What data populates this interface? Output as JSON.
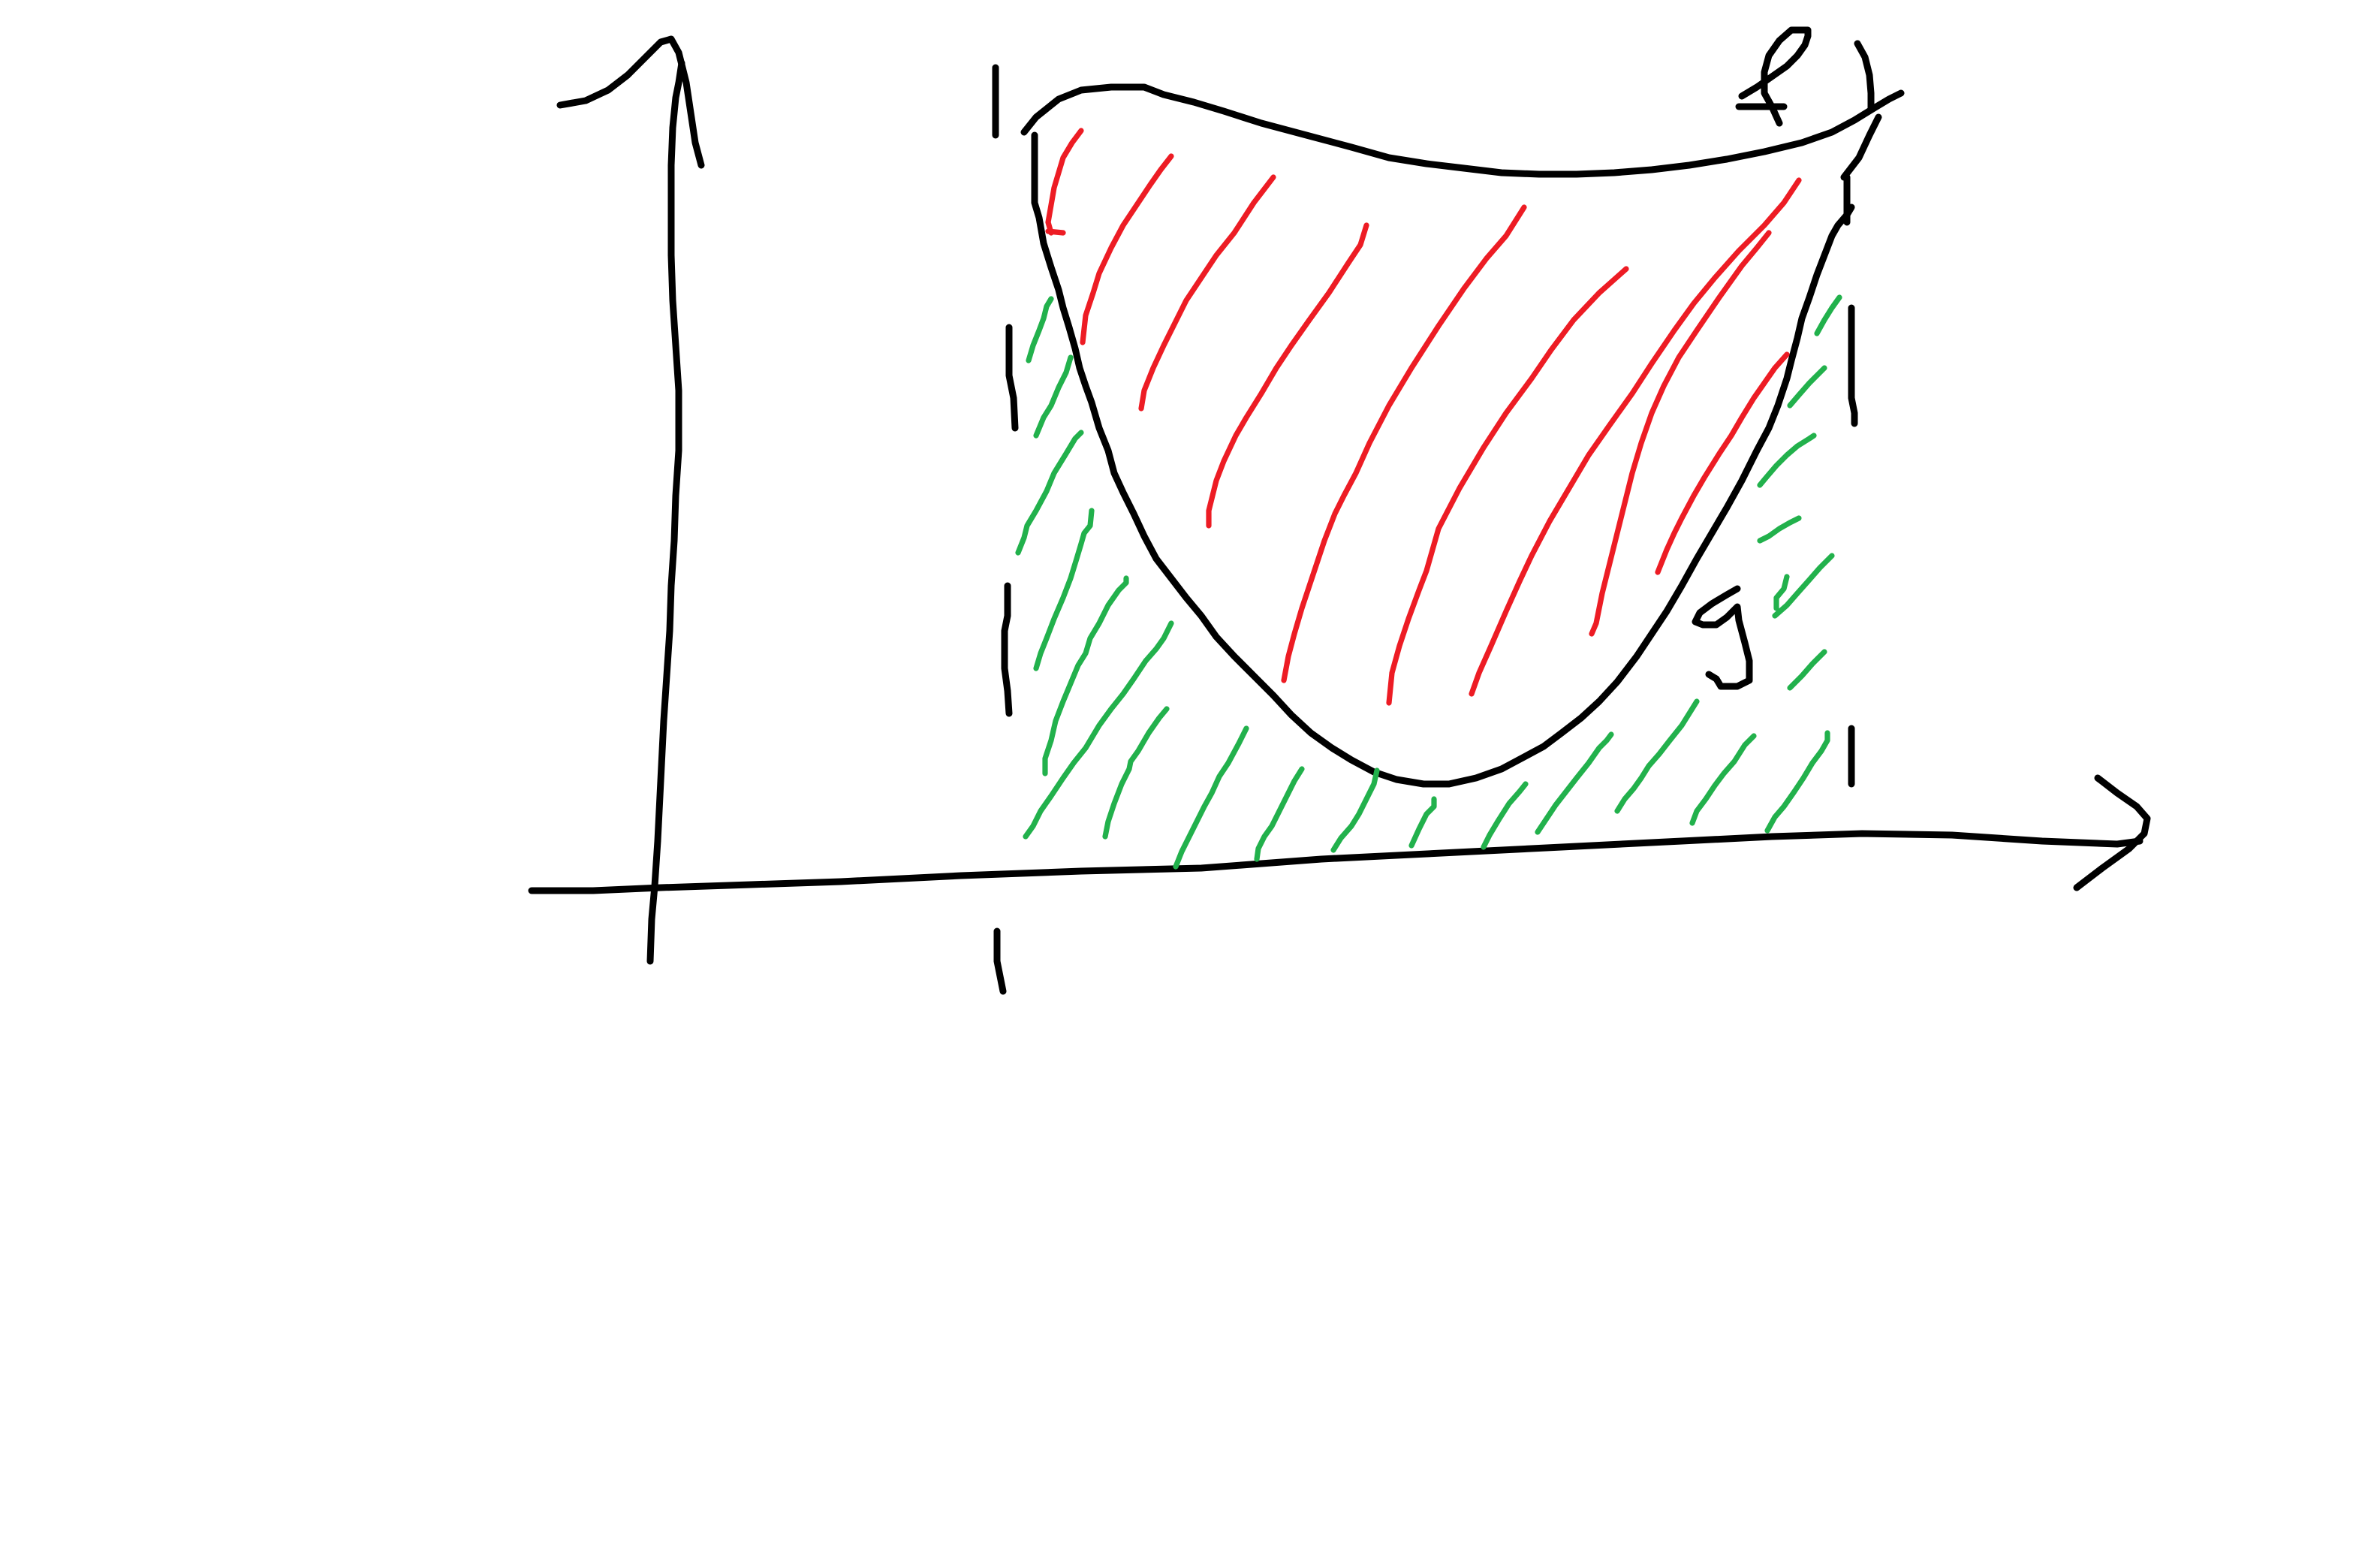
{
  "diagram": {
    "kind": "hand-drawn sketch: area between two curves f and g",
    "curve_labels": {
      "f": "f",
      "g": "g"
    },
    "colors": {
      "ink": "#000000",
      "region_between_f_and_g": "#ed1c24",
      "region_between_g_and_x_axis": "#22b14c",
      "background": "#ffffff"
    },
    "elements": [
      "y-axis-arrow",
      "x-axis-arrow",
      "curve-f",
      "curve-g",
      "left-boundary-dashed",
      "right-boundary-dashed",
      "red-hatching",
      "green-hatching",
      "label-f",
      "label-g"
    ]
  }
}
